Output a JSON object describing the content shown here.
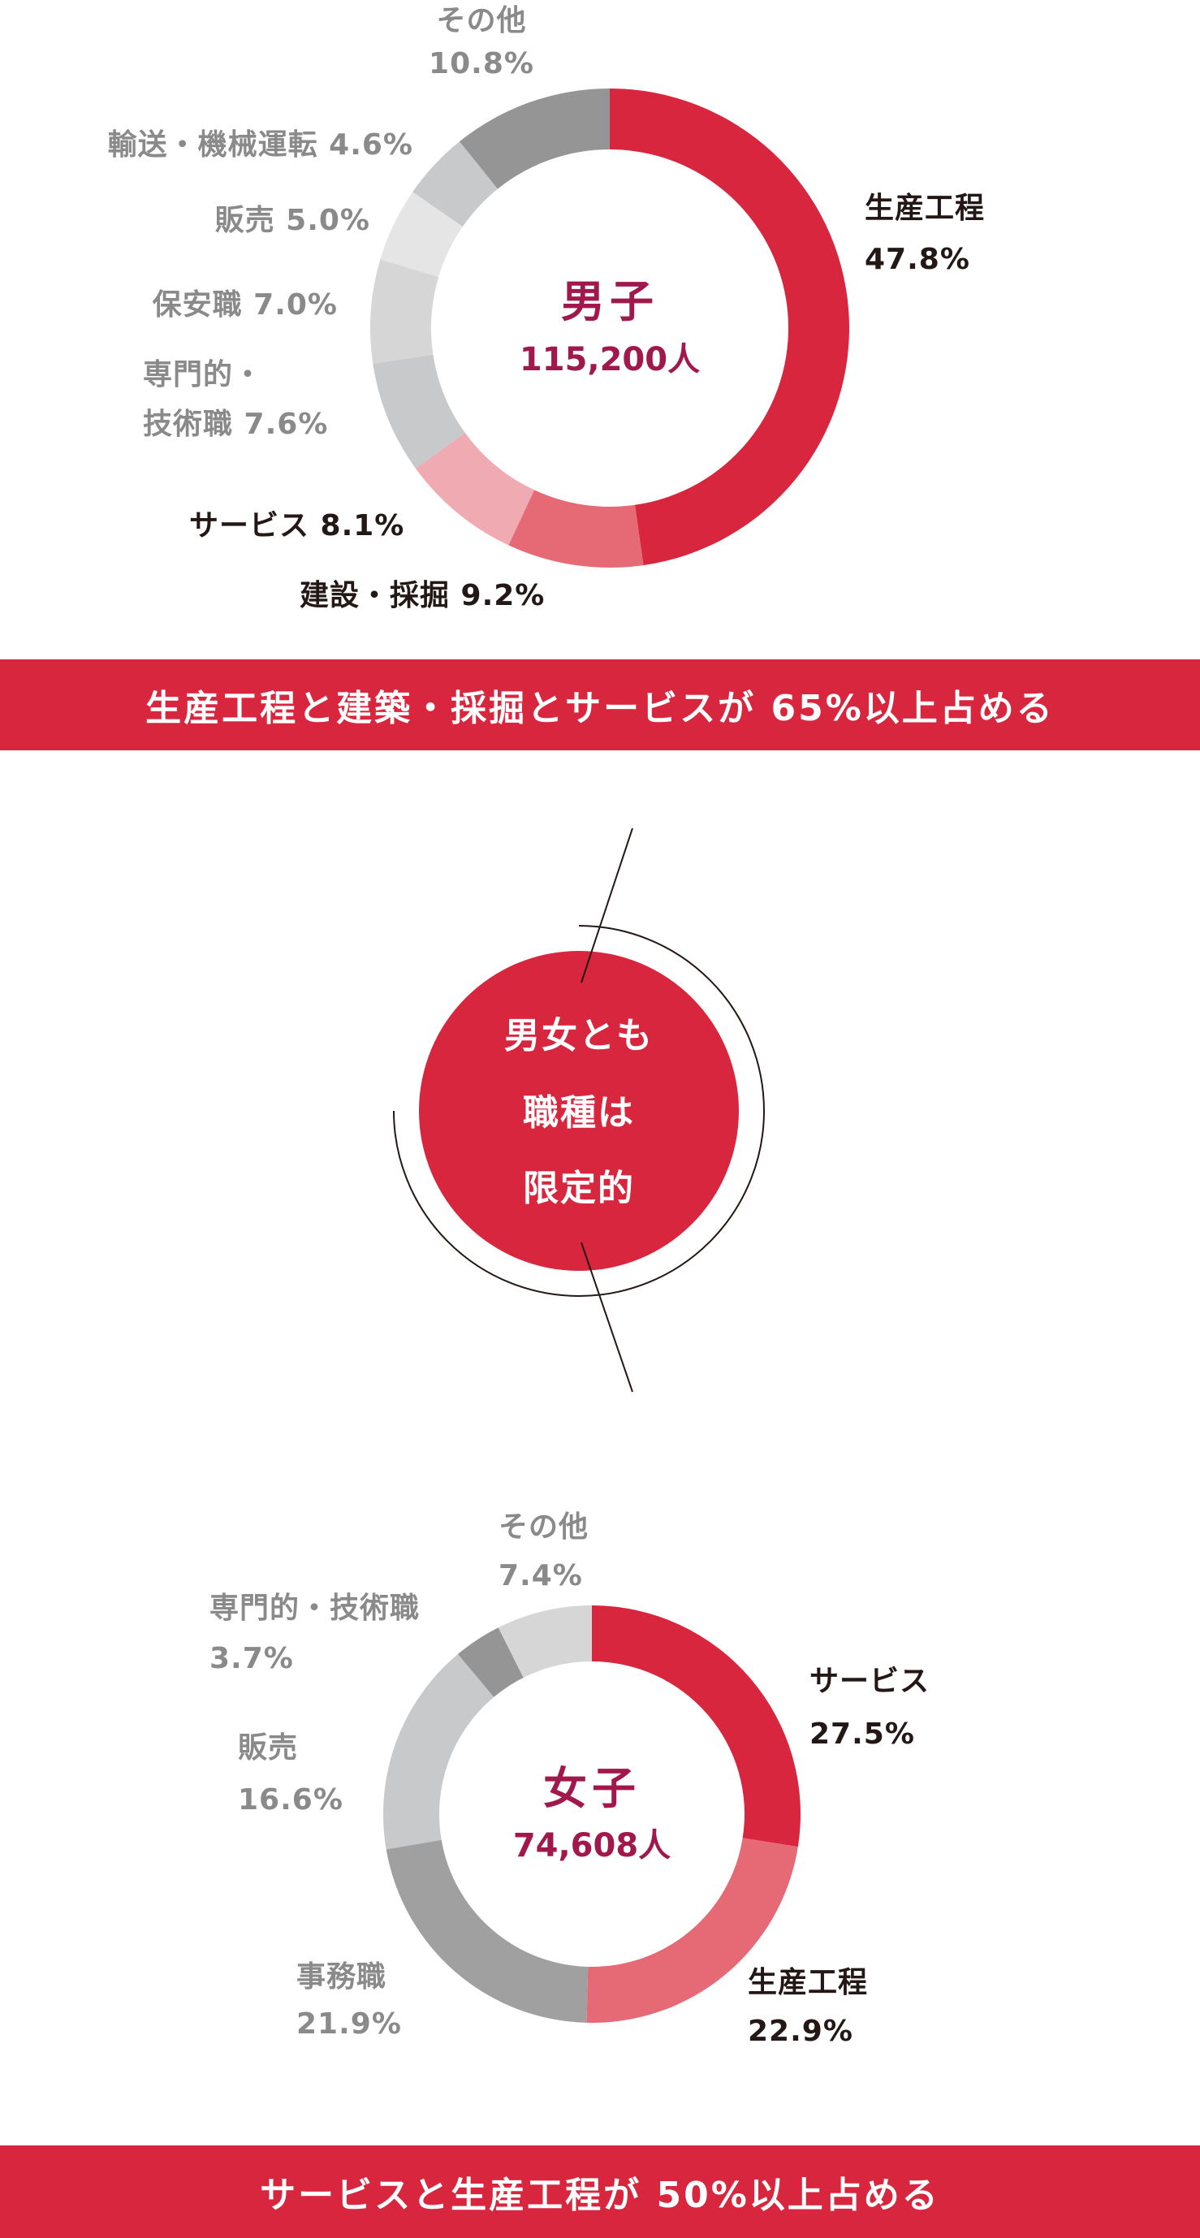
{
  "chart_data": [
    {
      "type": "pie",
      "donut": true,
      "center_title": "男子",
      "center_value": "115,200人",
      "slices": [
        {
          "label": "生産工程",
          "value": 47.8,
          "color": "#d7263d"
        },
        {
          "label": "建設・採掘",
          "value": 9.2,
          "color": "#e56a75"
        },
        {
          "label": "サービス",
          "value": 8.1,
          "color": "#efaab2"
        },
        {
          "label": "専門的・技術職",
          "value": 7.6,
          "color": "#c8c9cb"
        },
        {
          "label": "保安職",
          "value": 7.0,
          "color": "#d6d6d6"
        },
        {
          "label": "販売",
          "value": 5.0,
          "color": "#e5e5e5"
        },
        {
          "label": "輸送・機械運転",
          "value": 4.6,
          "color": "#c8c9cb"
        },
        {
          "label": "その他",
          "value": 10.8,
          "color": "#959595"
        }
      ],
      "labels": {
        "seisan": "生産工程",
        "seisan_pct": "47.8%",
        "kensetsu": "建設・採掘 9.2%",
        "service": "サービス 8.1%",
        "senmon1": "専門的・",
        "senmon2": "技術職 7.6%",
        "hoan": "保安職 7.0%",
        "hanbai": "販売 5.0%",
        "yuso": "輸送・機械運転 4.6%",
        "other": "その他",
        "other_pct": "10.8%"
      },
      "banner": "生産工程と建築・採掘とサービスが 65%以上占める"
    },
    {
      "type": "pie",
      "donut": true,
      "center_title": "女子",
      "center_value": "74,608人",
      "slices": [
        {
          "label": "サービス",
          "value": 27.5,
          "color": "#d7263d"
        },
        {
          "label": "生産工程",
          "value": 22.9,
          "color": "#e56a75"
        },
        {
          "label": "事務職",
          "value": 21.9,
          "color": "#a0a0a0"
        },
        {
          "label": "販売",
          "value": 16.6,
          "color": "#c8c9cb"
        },
        {
          "label": "専門的・技術職",
          "value": 3.7,
          "color": "#959595"
        },
        {
          "label": "その他",
          "value": 7.4,
          "color": "#d6d6d6"
        }
      ],
      "labels": {
        "service": "サービス",
        "service_pct": "27.5%",
        "seisan": "生産工程",
        "seisan_pct": "22.9%",
        "jimu": "事務職",
        "jimu_pct": "21.9%",
        "hanbai": "販売",
        "hanbai_pct": "16.6%",
        "senmon": "専門的・技術職",
        "senmon_pct": "3.7%",
        "other": "その他",
        "other_pct": "7.4%"
      },
      "banner": "サービスと生産工程が 50%以上占める"
    }
  ],
  "middle": {
    "lines": [
      "男女とも",
      "職種は",
      "限定的"
    ],
    "color": "#d7263d"
  }
}
